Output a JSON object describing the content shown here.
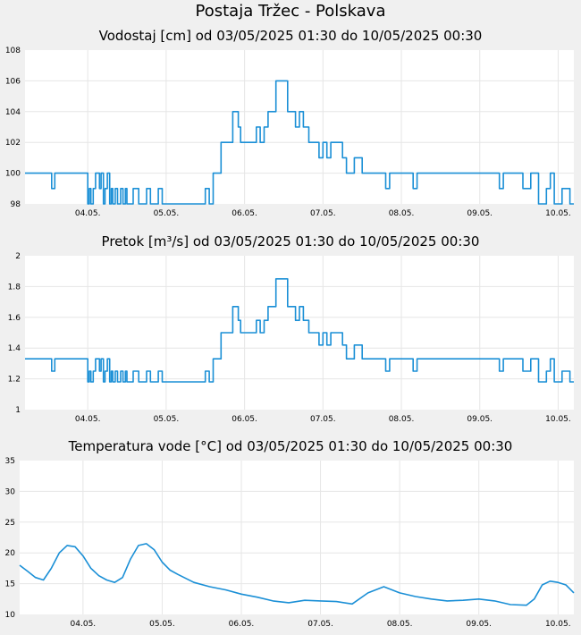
{
  "page": {
    "title": "Postaja Tržec - Polskava"
  },
  "colors": {
    "line": "#1a8fd6",
    "plot_bg": "#ffffff",
    "page_bg": "#f0f0f0",
    "grid": "#e6e6e6"
  },
  "chart_data": [
    {
      "type": "line",
      "title": "Vodostaj [cm] od 03/05/2025 01:30 do 10/05/2025 00:30",
      "xlabel": "",
      "ylabel": "",
      "xlim": [
        0,
        7.0
      ],
      "ylim": [
        98,
        108
      ],
      "yticks": [
        "98",
        "100",
        "102",
        "104",
        "106",
        "108"
      ],
      "xtick_positions": [
        0.8,
        1.8,
        2.8,
        3.8,
        4.8,
        5.8,
        6.8
      ],
      "xtick_labels": [
        "04.05.",
        "05.05.",
        "06.05.",
        "07.05.",
        "08.05.",
        "09.05.",
        "10.05."
      ],
      "grid": true,
      "step": true,
      "x": [
        0.0,
        0.33,
        0.34,
        0.38,
        0.39,
        0.77,
        0.8,
        0.82,
        0.84,
        0.87,
        0.9,
        0.95,
        0.97,
        1.0,
        1.02,
        1.05,
        1.08,
        1.1,
        1.12,
        1.15,
        1.18,
        1.22,
        1.25,
        1.28,
        1.3,
        1.35,
        1.38,
        1.45,
        1.55,
        1.6,
        1.65,
        1.7,
        1.75,
        1.8,
        1.85,
        2.25,
        2.3,
        2.35,
        2.4,
        2.45,
        2.5,
        2.55,
        2.65,
        2.72,
        2.75,
        2.8,
        2.9,
        2.95,
        3.0,
        3.05,
        3.1,
        3.15,
        3.2,
        3.3,
        3.35,
        3.4,
        3.45,
        3.5,
        3.55,
        3.62,
        3.7,
        3.75,
        3.8,
        3.85,
        3.9,
        3.95,
        4.0,
        4.05,
        4.1,
        4.2,
        4.3,
        4.35,
        4.4,
        4.45,
        4.55,
        4.6,
        4.65,
        4.7,
        4.8,
        4.9,
        4.95,
        5.0,
        5.05,
        6.0,
        6.05,
        6.1,
        6.3,
        6.35,
        6.45,
        6.5,
        6.55,
        6.65,
        6.7,
        6.75,
        6.8,
        6.85,
        6.95,
        7.0
      ],
      "y": [
        100,
        100,
        99,
        100,
        100,
        100,
        98,
        99,
        98,
        99,
        100,
        99,
        100,
        98,
        99,
        100,
        98,
        99,
        98,
        99,
        98,
        99,
        98,
        99,
        98,
        98,
        99,
        98,
        99,
        98,
        98,
        99,
        98,
        98,
        98,
        98,
        99,
        98,
        100,
        100,
        102,
        102,
        104,
        103,
        102,
        102,
        102,
        103,
        102,
        103,
        104,
        104,
        106,
        106,
        104,
        104,
        103,
        104,
        103,
        102,
        102,
        101,
        102,
        101,
        102,
        102,
        102,
        101,
        100,
        101,
        100,
        100,
        100,
        100,
        100,
        99,
        100,
        100,
        100,
        100,
        99,
        100,
        100,
        100,
        99,
        100,
        100,
        99,
        100,
        100,
        98,
        99,
        100,
        98,
        98,
        99,
        98,
        98
      ]
    },
    {
      "type": "line",
      "title": "Pretok [m³/s] od 03/05/2025 01:30 do 10/05/2025 00:30",
      "xlabel": "",
      "ylabel": "",
      "xlim": [
        0,
        7.0
      ],
      "ylim": [
        1,
        2
      ],
      "yticks": [
        "1",
        "1.2",
        "1.4",
        "1.6",
        "1.8",
        "2"
      ],
      "xtick_positions": [
        0.8,
        1.8,
        2.8,
        3.8,
        4.8,
        5.8,
        6.8
      ],
      "xtick_labels": [
        "04.05.",
        "05.05.",
        "06.05.",
        "07.05.",
        "08.05.",
        "09.05.",
        "10.05."
      ],
      "grid": true,
      "step": true,
      "x": [
        0.0,
        0.33,
        0.34,
        0.38,
        0.39,
        0.77,
        0.8,
        0.82,
        0.84,
        0.87,
        0.9,
        0.95,
        0.97,
        1.0,
        1.02,
        1.05,
        1.08,
        1.1,
        1.12,
        1.15,
        1.18,
        1.22,
        1.25,
        1.28,
        1.3,
        1.35,
        1.38,
        1.45,
        1.55,
        1.6,
        1.65,
        1.7,
        1.75,
        1.8,
        1.85,
        2.25,
        2.3,
        2.35,
        2.4,
        2.45,
        2.5,
        2.55,
        2.65,
        2.72,
        2.75,
        2.8,
        2.9,
        2.95,
        3.0,
        3.05,
        3.1,
        3.15,
        3.2,
        3.3,
        3.35,
        3.4,
        3.45,
        3.5,
        3.55,
        3.62,
        3.7,
        3.75,
        3.8,
        3.85,
        3.9,
        3.95,
        4.0,
        4.05,
        4.1,
        4.2,
        4.3,
        4.35,
        4.4,
        4.45,
        4.55,
        4.6,
        4.65,
        4.7,
        4.8,
        4.9,
        4.95,
        5.0,
        5.05,
        6.0,
        6.05,
        6.1,
        6.3,
        6.35,
        6.45,
        6.5,
        6.55,
        6.65,
        6.7,
        6.75,
        6.8,
        6.85,
        6.95,
        7.0
      ],
      "y": [
        1.33,
        1.33,
        1.25,
        1.33,
        1.33,
        1.33,
        1.18,
        1.25,
        1.18,
        1.25,
        1.33,
        1.25,
        1.33,
        1.18,
        1.25,
        1.33,
        1.18,
        1.25,
        1.18,
        1.25,
        1.18,
        1.25,
        1.18,
        1.25,
        1.18,
        1.18,
        1.25,
        1.18,
        1.25,
        1.18,
        1.18,
        1.25,
        1.18,
        1.18,
        1.18,
        1.18,
        1.25,
        1.18,
        1.33,
        1.33,
        1.5,
        1.5,
        1.67,
        1.58,
        1.5,
        1.5,
        1.5,
        1.58,
        1.5,
        1.58,
        1.67,
        1.67,
        1.85,
        1.85,
        1.67,
        1.67,
        1.58,
        1.67,
        1.58,
        1.5,
        1.5,
        1.42,
        1.5,
        1.42,
        1.5,
        1.5,
        1.5,
        1.42,
        1.33,
        1.42,
        1.33,
        1.33,
        1.33,
        1.33,
        1.33,
        1.25,
        1.33,
        1.33,
        1.33,
        1.33,
        1.25,
        1.33,
        1.33,
        1.33,
        1.25,
        1.33,
        1.33,
        1.25,
        1.33,
        1.33,
        1.18,
        1.25,
        1.33,
        1.18,
        1.18,
        1.25,
        1.18,
        1.18
      ]
    },
    {
      "type": "line",
      "title": "Temperatura vode [°C] od 03/05/2025 01:30 do 10/05/2025 00:30",
      "xlabel": "",
      "ylabel": "",
      "xlim": [
        0,
        7.0
      ],
      "ylim": [
        10,
        35
      ],
      "yticks": [
        "10",
        "15",
        "20",
        "25",
        "30",
        "35"
      ],
      "xtick_positions": [
        0.8,
        1.8,
        2.8,
        3.8,
        4.8,
        5.8,
        6.8
      ],
      "xtick_labels": [
        "04.05.",
        "05.05.",
        "06.05.",
        "07.05.",
        "08.05.",
        "09.05.",
        "10.05."
      ],
      "grid": true,
      "step": false,
      "x": [
        0.0,
        0.1,
        0.2,
        0.3,
        0.4,
        0.5,
        0.6,
        0.7,
        0.8,
        0.9,
        1.0,
        1.1,
        1.2,
        1.3,
        1.4,
        1.5,
        1.6,
        1.7,
        1.8,
        1.9,
        2.0,
        2.2,
        2.4,
        2.6,
        2.8,
        3.0,
        3.2,
        3.4,
        3.6,
        3.8,
        4.0,
        4.2,
        4.4,
        4.6,
        4.8,
        5.0,
        5.2,
        5.4,
        5.6,
        5.8,
        6.0,
        6.2,
        6.4,
        6.5,
        6.6,
        6.7,
        6.8,
        6.9,
        7.0
      ],
      "y": [
        18.0,
        17.0,
        16.0,
        15.6,
        17.5,
        20.0,
        21.2,
        21.0,
        19.5,
        17.5,
        16.3,
        15.6,
        15.2,
        16.0,
        19.0,
        21.2,
        21.5,
        20.5,
        18.5,
        17.2,
        16.5,
        15.2,
        14.5,
        14.0,
        13.3,
        12.8,
        12.2,
        11.9,
        12.3,
        12.2,
        12.1,
        11.7,
        13.5,
        14.5,
        13.5,
        12.9,
        12.5,
        12.2,
        12.3,
        12.5,
        12.2,
        11.6,
        11.5,
        12.5,
        14.8,
        15.4,
        15.2,
        14.8,
        13.5
      ]
    }
  ]
}
